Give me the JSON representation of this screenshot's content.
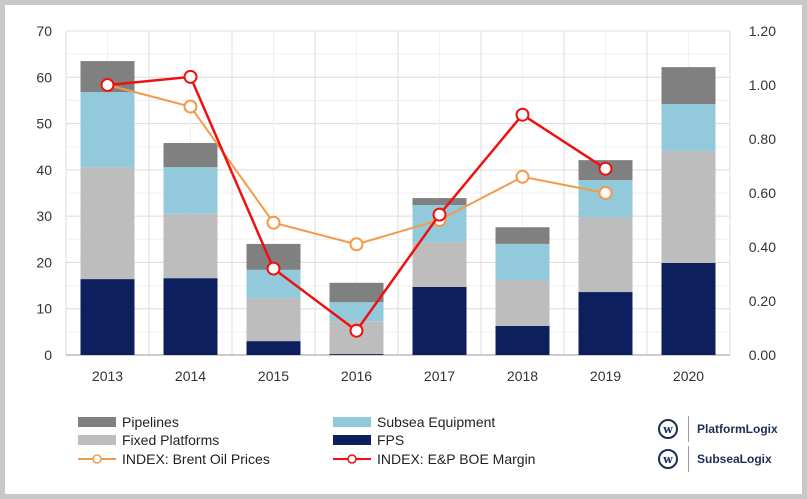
{
  "chart_data": {
    "type": "bar",
    "stacked": true,
    "categories": [
      "2013",
      "2014",
      "2015",
      "2016",
      "2017",
      "2018",
      "2019",
      "2020"
    ],
    "y_left": {
      "range": [
        0,
        70
      ],
      "ticks": [
        "0",
        "10",
        "20",
        "30",
        "40",
        "50",
        "60",
        "70"
      ]
    },
    "y_right": {
      "range": [
        0,
        1.2
      ],
      "ticks": [
        "0.00",
        "0.20",
        "0.40",
        "0.60",
        "0.80",
        "1.00",
        "1.20"
      ]
    },
    "grid": true,
    "legend_position": "bottom",
    "series": [
      {
        "name": "FPS",
        "color": "#0d1f5c",
        "axis": "left",
        "values": [
          16.4,
          16.6,
          3.0,
          0.2,
          14.7,
          6.3,
          13.6,
          19.9
        ]
      },
      {
        "name": "Fixed Platforms",
        "color": "#bdbdbd",
        "axis": "left",
        "values": [
          24.2,
          13.9,
          9.3,
          7.1,
          9.7,
          9.9,
          16.2,
          24.2
        ]
      },
      {
        "name": "Subsea Equipment",
        "color": "#92cadb",
        "axis": "left",
        "values": [
          16.2,
          10.1,
          6.1,
          4.1,
          8.0,
          7.8,
          8.0,
          10.1
        ]
      },
      {
        "name": "Pipelines",
        "color": "#808080",
        "axis": "left",
        "values": [
          6.7,
          5.2,
          5.6,
          4.2,
          1.5,
          3.6,
          4.3,
          8.0
        ]
      }
    ],
    "lines": [
      {
        "name": "INDEX: Brent Oil Prices",
        "color": "#f39a4a",
        "axis": "right",
        "values": [
          1.0,
          0.92,
          0.49,
          0.41,
          0.5,
          0.66,
          0.6,
          null
        ]
      },
      {
        "name": "INDEX: E&P BOE Margin",
        "color": "#ee1111",
        "axis": "right",
        "values": [
          1.0,
          1.03,
          0.32,
          0.09,
          0.52,
          0.89,
          0.69,
          null
        ]
      }
    ]
  },
  "legend": [
    "Pipelines",
    "Subsea Equipment",
    "Fixed Platforms",
    "FPS",
    "INDEX: Brent Oil Prices",
    "INDEX: E&P BOE Margin"
  ],
  "logos": [
    "PlatformLogix",
    "SubseaLogix"
  ]
}
